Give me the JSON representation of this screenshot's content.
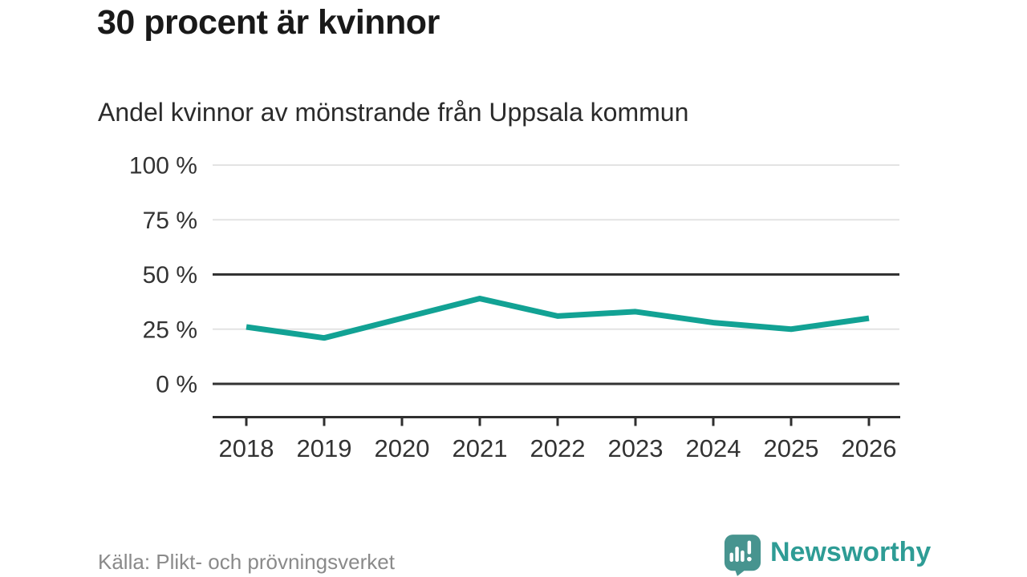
{
  "header": {
    "title": "30 procent är kvinnor",
    "subtitle": "Andel kvinnor av mönstrande från Uppsala kommun"
  },
  "chart_data": {
    "type": "line",
    "categories": [
      "2018",
      "2019",
      "2020",
      "2021",
      "2022",
      "2023",
      "2024",
      "2025",
      "2026"
    ],
    "values": [
      26,
      21,
      30,
      39,
      31,
      33,
      28,
      25,
      30
    ],
    "series_name": "Andel kvinnor av mönstrande",
    "unit": "%",
    "title": "30 procent är kvinnor",
    "subtitle": "Andel kvinnor av mönstrande från Uppsala kommun",
    "xlabel": "",
    "ylabel": "",
    "ylim": [
      0,
      100
    ],
    "y_ticks": [
      0,
      25,
      50,
      75,
      100
    ],
    "y_tick_labels": [
      "0 %",
      "25 %",
      "50 %",
      "75 %",
      "100 %"
    ],
    "emphasized_gridlines": [
      0,
      50
    ],
    "grid_on": true,
    "legend_position": "none",
    "line_color": "#12a294"
  },
  "footer": {
    "source": "Källa: Plikt- och prövningsverket",
    "brand": "Newsworthy"
  },
  "colors": {
    "accent_teal": "#12a294",
    "brand_text_teal": "#2e9c95",
    "logo_bubble_teal": "#47948f",
    "title_color": "#191919",
    "axis_text_color": "#333333",
    "source_text_color": "#8a8a8a",
    "grid_light": "#e3e3e3",
    "grid_dark": "#333333",
    "axis_dark": "#2f2f2f",
    "background": "#ffffff"
  },
  "icons": {
    "logo": "newsworthy-speech-bubble-bar-chart-icon"
  }
}
